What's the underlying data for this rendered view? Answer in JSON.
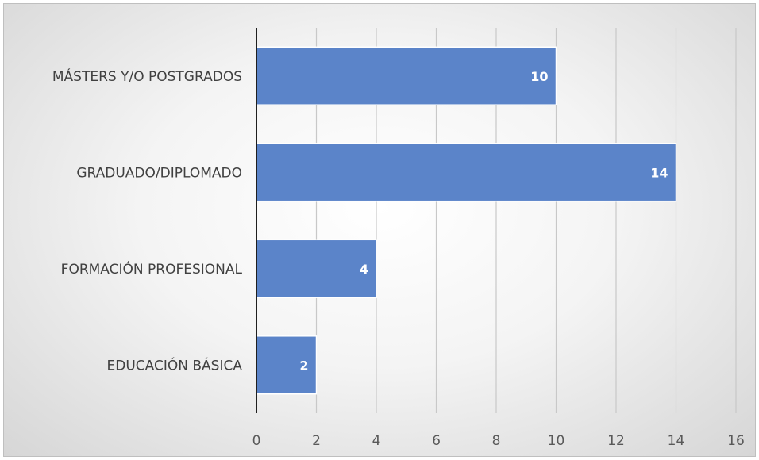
{
  "chart_data": {
    "type": "bar",
    "orientation": "horizontal",
    "categories": [
      "EDUCACIÓN BÁSICA",
      "FORMACIÓN PROFESIONAL",
      "GRADUADO/DIPLOMADO",
      "MÁSTERS Y/O POSTGRADOS"
    ],
    "values": [
      2,
      4,
      14,
      10
    ],
    "data_labels": [
      "2",
      "4",
      "14",
      "10"
    ],
    "xlim": [
      0,
      16
    ],
    "x_ticks": [
      "0",
      "2",
      "4",
      "6",
      "8",
      "10",
      "12",
      "14",
      "16"
    ],
    "grid": "vertical",
    "legend": "none",
    "title": "",
    "xlabel": "",
    "ylabel": ""
  },
  "colors": {
    "bar": "#5b84c9",
    "bar_edge": "#ffffff",
    "grid": "#c8c8c8",
    "axis": "#1f1f1f"
  }
}
